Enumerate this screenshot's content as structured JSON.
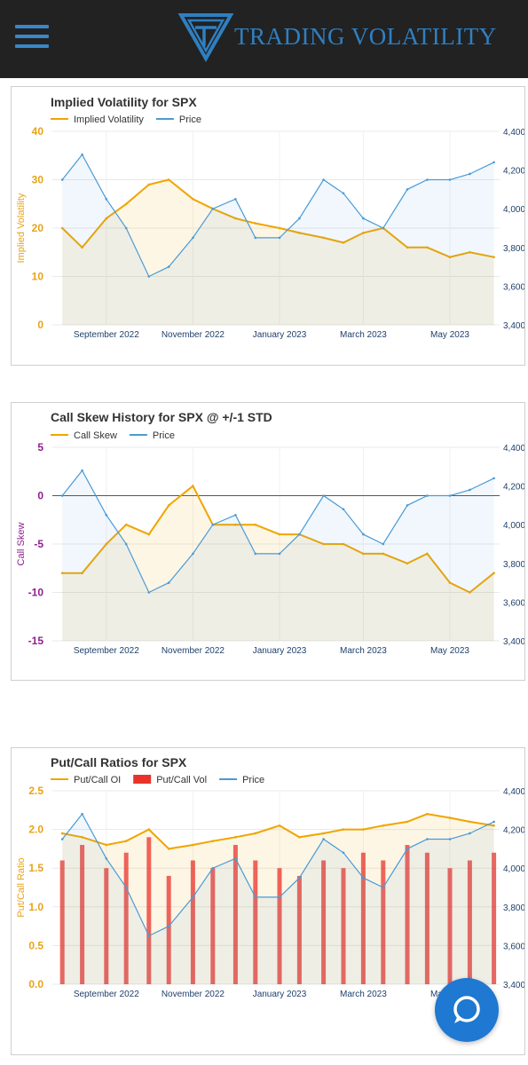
{
  "header": {
    "brand": "TRADING VOLATILITY",
    "bg_color": "#222222",
    "accent_color": "#2f7fc1",
    "menu_icon": "hamburger-menu-icon",
    "logo_icon": "tv-shield-logo-icon"
  },
  "chat_button": {
    "icon": "chat-bubble-icon",
    "color": "#1f78d1"
  },
  "x_ticks": [
    "September 2022",
    "November 2022",
    "January 2023",
    "March 2023",
    "May 2023"
  ],
  "right_ticks": [
    "4,400",
    "4,200",
    "4,000",
    "3,800",
    "3,600",
    "3,400"
  ],
  "chart_data": [
    {
      "type": "line",
      "title": "Implied Volatility for SPX",
      "ylabel": "Implied Volatility",
      "ylim": [
        0,
        40
      ],
      "y_ticks": [
        "40",
        "30",
        "20",
        "10",
        "0"
      ],
      "y2lim": [
        3400,
        4400
      ],
      "legend": [
        "Implied Volatility",
        "Price"
      ],
      "series": [
        {
          "name": "Implied Volatility",
          "color": "#f0a500",
          "x": [
            "2022-08-01",
            "2022-08-15",
            "2022-09-01",
            "2022-09-15",
            "2022-10-01",
            "2022-10-15",
            "2022-11-01",
            "2022-11-15",
            "2022-12-01",
            "2022-12-15",
            "2023-01-01",
            "2023-01-15",
            "2023-02-01",
            "2023-02-15",
            "2023-03-01",
            "2023-03-15",
            "2023-04-01",
            "2023-04-15",
            "2023-05-01",
            "2023-05-15",
            "2023-06-01"
          ],
          "values": [
            20,
            16,
            22,
            25,
            29,
            30,
            26,
            24,
            22,
            21,
            20,
            19,
            18,
            17,
            19,
            20,
            16,
            16,
            14,
            15,
            14
          ]
        },
        {
          "name": "Price",
          "color": "#4a9bd6",
          "x": [
            "2022-08-01",
            "2022-08-15",
            "2022-09-01",
            "2022-09-15",
            "2022-10-01",
            "2022-10-15",
            "2022-11-01",
            "2022-11-15",
            "2022-12-01",
            "2022-12-15",
            "2023-01-01",
            "2023-01-15",
            "2023-02-01",
            "2023-02-15",
            "2023-03-01",
            "2023-03-15",
            "2023-04-01",
            "2023-04-15",
            "2023-05-01",
            "2023-05-15",
            "2023-06-01"
          ],
          "values": [
            4150,
            4280,
            4050,
            3900,
            3650,
            3700,
            3850,
            4000,
            4050,
            3850,
            3850,
            3950,
            4150,
            4080,
            3950,
            3900,
            4100,
            4150,
            4150,
            4180,
            4240
          ]
        }
      ]
    },
    {
      "type": "line",
      "title": "Call Skew History for SPX @ +/-1 STD",
      "ylabel": "Call Skew",
      "ylim": [
        -15,
        5
      ],
      "y_ticks": [
        "5",
        "0",
        "-5",
        "-10",
        "-15"
      ],
      "y2lim": [
        3400,
        4400
      ],
      "legend": [
        "Call Skew",
        "Price"
      ],
      "series": [
        {
          "name": "Call Skew",
          "color": "#f0a500",
          "x": [
            "2022-08-01",
            "2022-08-15",
            "2022-09-01",
            "2022-09-15",
            "2022-10-01",
            "2022-10-15",
            "2022-11-01",
            "2022-11-15",
            "2022-12-01",
            "2022-12-15",
            "2023-01-01",
            "2023-01-15",
            "2023-02-01",
            "2023-02-15",
            "2023-03-01",
            "2023-03-15",
            "2023-04-01",
            "2023-04-15",
            "2023-05-01",
            "2023-05-15",
            "2023-06-01"
          ],
          "values": [
            -8,
            -8,
            -5,
            -3,
            -4,
            -1,
            1,
            -3,
            -3,
            -3,
            -4,
            -4,
            -5,
            -5,
            -6,
            -6,
            -7,
            -6,
            -9,
            -10,
            -8
          ]
        },
        {
          "name": "Price",
          "color": "#4a9bd6",
          "x": [
            "2022-08-01",
            "2022-08-15",
            "2022-09-01",
            "2022-09-15",
            "2022-10-01",
            "2022-10-15",
            "2022-11-01",
            "2022-11-15",
            "2022-12-01",
            "2022-12-15",
            "2023-01-01",
            "2023-01-15",
            "2023-02-01",
            "2023-02-15",
            "2023-03-01",
            "2023-03-15",
            "2023-04-01",
            "2023-04-15",
            "2023-05-01",
            "2023-05-15",
            "2023-06-01"
          ],
          "values": [
            4150,
            4280,
            4050,
            3900,
            3650,
            3700,
            3850,
            4000,
            4050,
            3850,
            3850,
            3950,
            4150,
            4080,
            3950,
            3900,
            4100,
            4150,
            4150,
            4180,
            4240
          ]
        }
      ]
    },
    {
      "type": "bar",
      "title": "Put/Call Ratios for SPX",
      "ylabel": "Put/Call Ratio",
      "ylim": [
        0,
        2.5
      ],
      "y_ticks": [
        "2.5",
        "2.0",
        "1.5",
        "1.0",
        "0.5",
        "0.0"
      ],
      "y2lim": [
        3400,
        4400
      ],
      "legend": [
        "Put/Call OI",
        "Put/Call Vol",
        "Price"
      ],
      "series": [
        {
          "name": "Put/Call OI",
          "color": "#f0a500",
          "x": [
            "2022-08-01",
            "2022-08-15",
            "2022-09-01",
            "2022-09-15",
            "2022-10-01",
            "2022-10-15",
            "2022-11-01",
            "2022-11-15",
            "2022-12-01",
            "2022-12-15",
            "2023-01-01",
            "2023-01-15",
            "2023-02-01",
            "2023-02-15",
            "2023-03-01",
            "2023-03-15",
            "2023-04-01",
            "2023-04-15",
            "2023-05-01",
            "2023-05-15",
            "2023-06-01"
          ],
          "values": [
            1.95,
            1.9,
            1.8,
            1.85,
            2.0,
            1.75,
            1.8,
            1.85,
            1.9,
            1.95,
            2.05,
            1.9,
            1.95,
            2.0,
            2.0,
            2.05,
            2.1,
            2.2,
            2.15,
            2.1,
            2.05
          ]
        },
        {
          "name": "Put/Call Vol",
          "color": "#e8332a",
          "x": [
            "2022-08-01",
            "2022-08-15",
            "2022-09-01",
            "2022-09-15",
            "2022-10-01",
            "2022-10-15",
            "2022-11-01",
            "2022-11-15",
            "2022-12-01",
            "2022-12-15",
            "2023-01-01",
            "2023-01-15",
            "2023-02-01",
            "2023-02-15",
            "2023-03-01",
            "2023-03-15",
            "2023-04-01",
            "2023-04-15",
            "2023-05-01",
            "2023-05-15",
            "2023-06-01"
          ],
          "values": [
            1.6,
            1.8,
            1.5,
            1.7,
            1.9,
            1.4,
            1.6,
            1.5,
            1.8,
            1.6,
            1.5,
            1.4,
            1.6,
            1.5,
            1.7,
            1.6,
            1.8,
            1.7,
            1.5,
            1.6,
            1.7
          ]
        },
        {
          "name": "Price",
          "color": "#4a9bd6",
          "x": [
            "2022-08-01",
            "2022-08-15",
            "2022-09-01",
            "2022-09-15",
            "2022-10-01",
            "2022-10-15",
            "2022-11-01",
            "2022-11-15",
            "2022-12-01",
            "2022-12-15",
            "2023-01-01",
            "2023-01-15",
            "2023-02-01",
            "2023-02-15",
            "2023-03-01",
            "2023-03-15",
            "2023-04-01",
            "2023-04-15",
            "2023-05-01",
            "2023-05-15",
            "2023-06-01"
          ],
          "values": [
            4150,
            4280,
            4050,
            3900,
            3650,
            3700,
            3850,
            4000,
            4050,
            3850,
            3850,
            3950,
            4150,
            4080,
            3950,
            3900,
            4100,
            4150,
            4150,
            4180,
            4240
          ]
        }
      ]
    }
  ]
}
